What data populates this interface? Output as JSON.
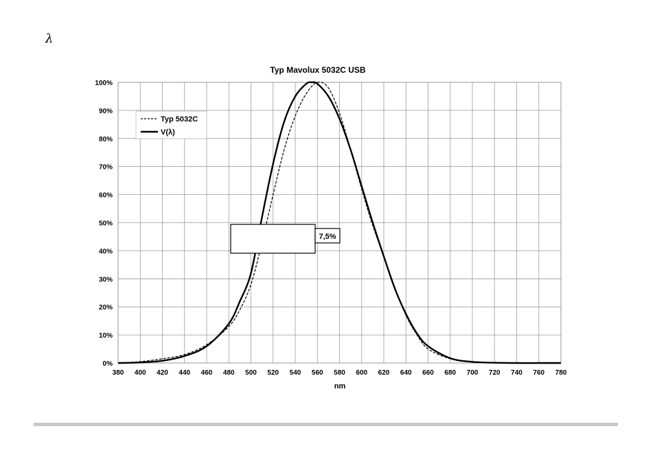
{
  "page": {
    "corner_symbol": "λ"
  },
  "chart_data": {
    "type": "line",
    "title": "Typ Mavolux 5032C USB",
    "xlabel": "nm",
    "ylabel": "",
    "xlim": [
      380,
      780
    ],
    "ylim": [
      0,
      100
    ],
    "x_ticks": [
      380,
      400,
      420,
      440,
      460,
      480,
      500,
      520,
      540,
      560,
      580,
      600,
      620,
      640,
      660,
      680,
      700,
      720,
      740,
      760,
      780
    ],
    "y_tick_labels": [
      "0%",
      "10%",
      "20%",
      "30%",
      "40%",
      "50%",
      "60%",
      "70%",
      "80%",
      "90%",
      "100%"
    ],
    "grid": true,
    "legend_position": "top-left",
    "annotation": "7,5%",
    "series": [
      {
        "name": "Typ 5032C",
        "style": "dashed",
        "color": "#000000",
        "x": [
          380,
          400,
          420,
          440,
          460,
          480,
          490,
          500,
          510,
          520,
          530,
          540,
          550,
          560,
          570,
          580,
          590,
          600,
          610,
          620,
          630,
          640,
          650,
          660,
          680,
          700,
          720,
          740,
          760,
          780
        ],
        "y": [
          0,
          0.5,
          1.5,
          3,
          6.5,
          13,
          19,
          28,
          43,
          60,
          76,
          88,
          96,
          100,
          98,
          89,
          76,
          62,
          49,
          38,
          27,
          17,
          10,
          5,
          1.5,
          0.3,
          0.1,
          0,
          0,
          0
        ]
      },
      {
        "name": "V(λ)",
        "style": "solid",
        "color": "#000000",
        "x": [
          380,
          400,
          420,
          440,
          460,
          480,
          490,
          500,
          510,
          520,
          530,
          540,
          550,
          555,
          560,
          570,
          580,
          590,
          600,
          610,
          620,
          630,
          640,
          650,
          660,
          680,
          700,
          720,
          740,
          760,
          780
        ],
        "y": [
          0,
          0.2,
          0.8,
          2.5,
          6,
          14,
          22,
          32,
          52,
          71,
          86,
          95,
          99.5,
          100,
          99.5,
          95,
          87,
          76,
          63,
          50,
          38,
          26.5,
          17.5,
          10.5,
          6,
          1.7,
          0.4,
          0.1,
          0,
          0,
          0
        ]
      }
    ]
  }
}
